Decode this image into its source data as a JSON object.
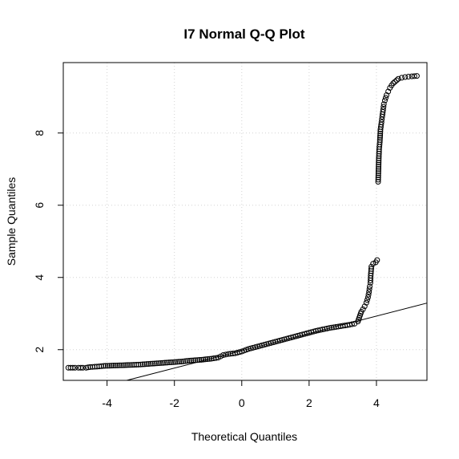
{
  "chart_data": {
    "type": "scatter",
    "title": "I7 Normal Q-Q Plot",
    "xlabel": "Theoretical Quantiles",
    "ylabel": "Sample Quantiles",
    "xlim": [
      -5.3,
      5.5
    ],
    "ylim": [
      1.15,
      9.95
    ],
    "xticks": [
      -4,
      -2,
      0,
      2,
      4
    ],
    "yticks": [
      2,
      4,
      6,
      8
    ],
    "grid": true,
    "reference_line": {
      "intercept": 1.97,
      "slope": 0.24
    },
    "points": [
      [
        -5.15,
        1.5
      ],
      [
        -4.95,
        1.5
      ],
      [
        -4.85,
        1.5
      ],
      [
        -4.78,
        1.5
      ],
      [
        -4.72,
        1.5
      ],
      [
        -4.62,
        1.5
      ],
      [
        -4.5,
        1.52
      ],
      [
        -4.3,
        1.53
      ],
      [
        -4.1,
        1.55
      ],
      [
        -3.8,
        1.56
      ],
      [
        -3.5,
        1.57
      ],
      [
        -3.2,
        1.58
      ],
      [
        -3.0,
        1.59
      ],
      [
        -2.7,
        1.61
      ],
      [
        -2.4,
        1.63
      ],
      [
        -2.1,
        1.65
      ],
      [
        -1.8,
        1.67
      ],
      [
        -1.5,
        1.7
      ],
      [
        -1.2,
        1.72
      ],
      [
        -0.9,
        1.75
      ],
      [
        -0.7,
        1.78
      ],
      [
        -0.55,
        1.85
      ],
      [
        -0.4,
        1.88
      ],
      [
        -0.2,
        1.9
      ],
      [
        0.0,
        1.95
      ],
      [
        0.2,
        2.02
      ],
      [
        0.4,
        2.07
      ],
      [
        0.6,
        2.12
      ],
      [
        0.8,
        2.17
      ],
      [
        1.0,
        2.22
      ],
      [
        1.2,
        2.27
      ],
      [
        1.4,
        2.32
      ],
      [
        1.6,
        2.37
      ],
      [
        1.8,
        2.42
      ],
      [
        2.0,
        2.47
      ],
      [
        2.2,
        2.52
      ],
      [
        2.4,
        2.56
      ],
      [
        2.6,
        2.6
      ],
      [
        2.8,
        2.63
      ],
      [
        3.0,
        2.66
      ],
      [
        3.2,
        2.69
      ],
      [
        3.35,
        2.72
      ],
      [
        3.45,
        2.78
      ],
      [
        3.55,
        3.05
      ],
      [
        3.6,
        3.12
      ],
      [
        3.65,
        3.2
      ],
      [
        3.7,
        3.3
      ],
      [
        3.75,
        3.45
      ],
      [
        3.78,
        3.6
      ],
      [
        3.8,
        3.75
      ],
      [
        3.82,
        3.85
      ],
      [
        3.83,
        4.05
      ],
      [
        3.85,
        4.3
      ],
      [
        3.9,
        4.38
      ],
      [
        3.98,
        4.42
      ],
      [
        4.02,
        4.48
      ],
      [
        4.05,
        6.65
      ],
      [
        4.07,
        7.3
      ],
      [
        4.08,
        7.55
      ],
      [
        4.1,
        7.75
      ],
      [
        4.12,
        8.1
      ],
      [
        4.15,
        8.3
      ],
      [
        4.17,
        8.45
      ],
      [
        4.2,
        8.65
      ],
      [
        4.22,
        8.8
      ],
      [
        4.25,
        8.9
      ],
      [
        4.3,
        9.05
      ],
      [
        4.35,
        9.15
      ],
      [
        4.4,
        9.25
      ],
      [
        4.45,
        9.32
      ],
      [
        4.5,
        9.38
      ],
      [
        4.55,
        9.42
      ],
      [
        4.6,
        9.46
      ],
      [
        4.65,
        9.5
      ],
      [
        4.75,
        9.53
      ],
      [
        4.85,
        9.55
      ],
      [
        4.95,
        9.56
      ],
      [
        5.05,
        9.57
      ],
      [
        5.2,
        9.58
      ]
    ]
  }
}
